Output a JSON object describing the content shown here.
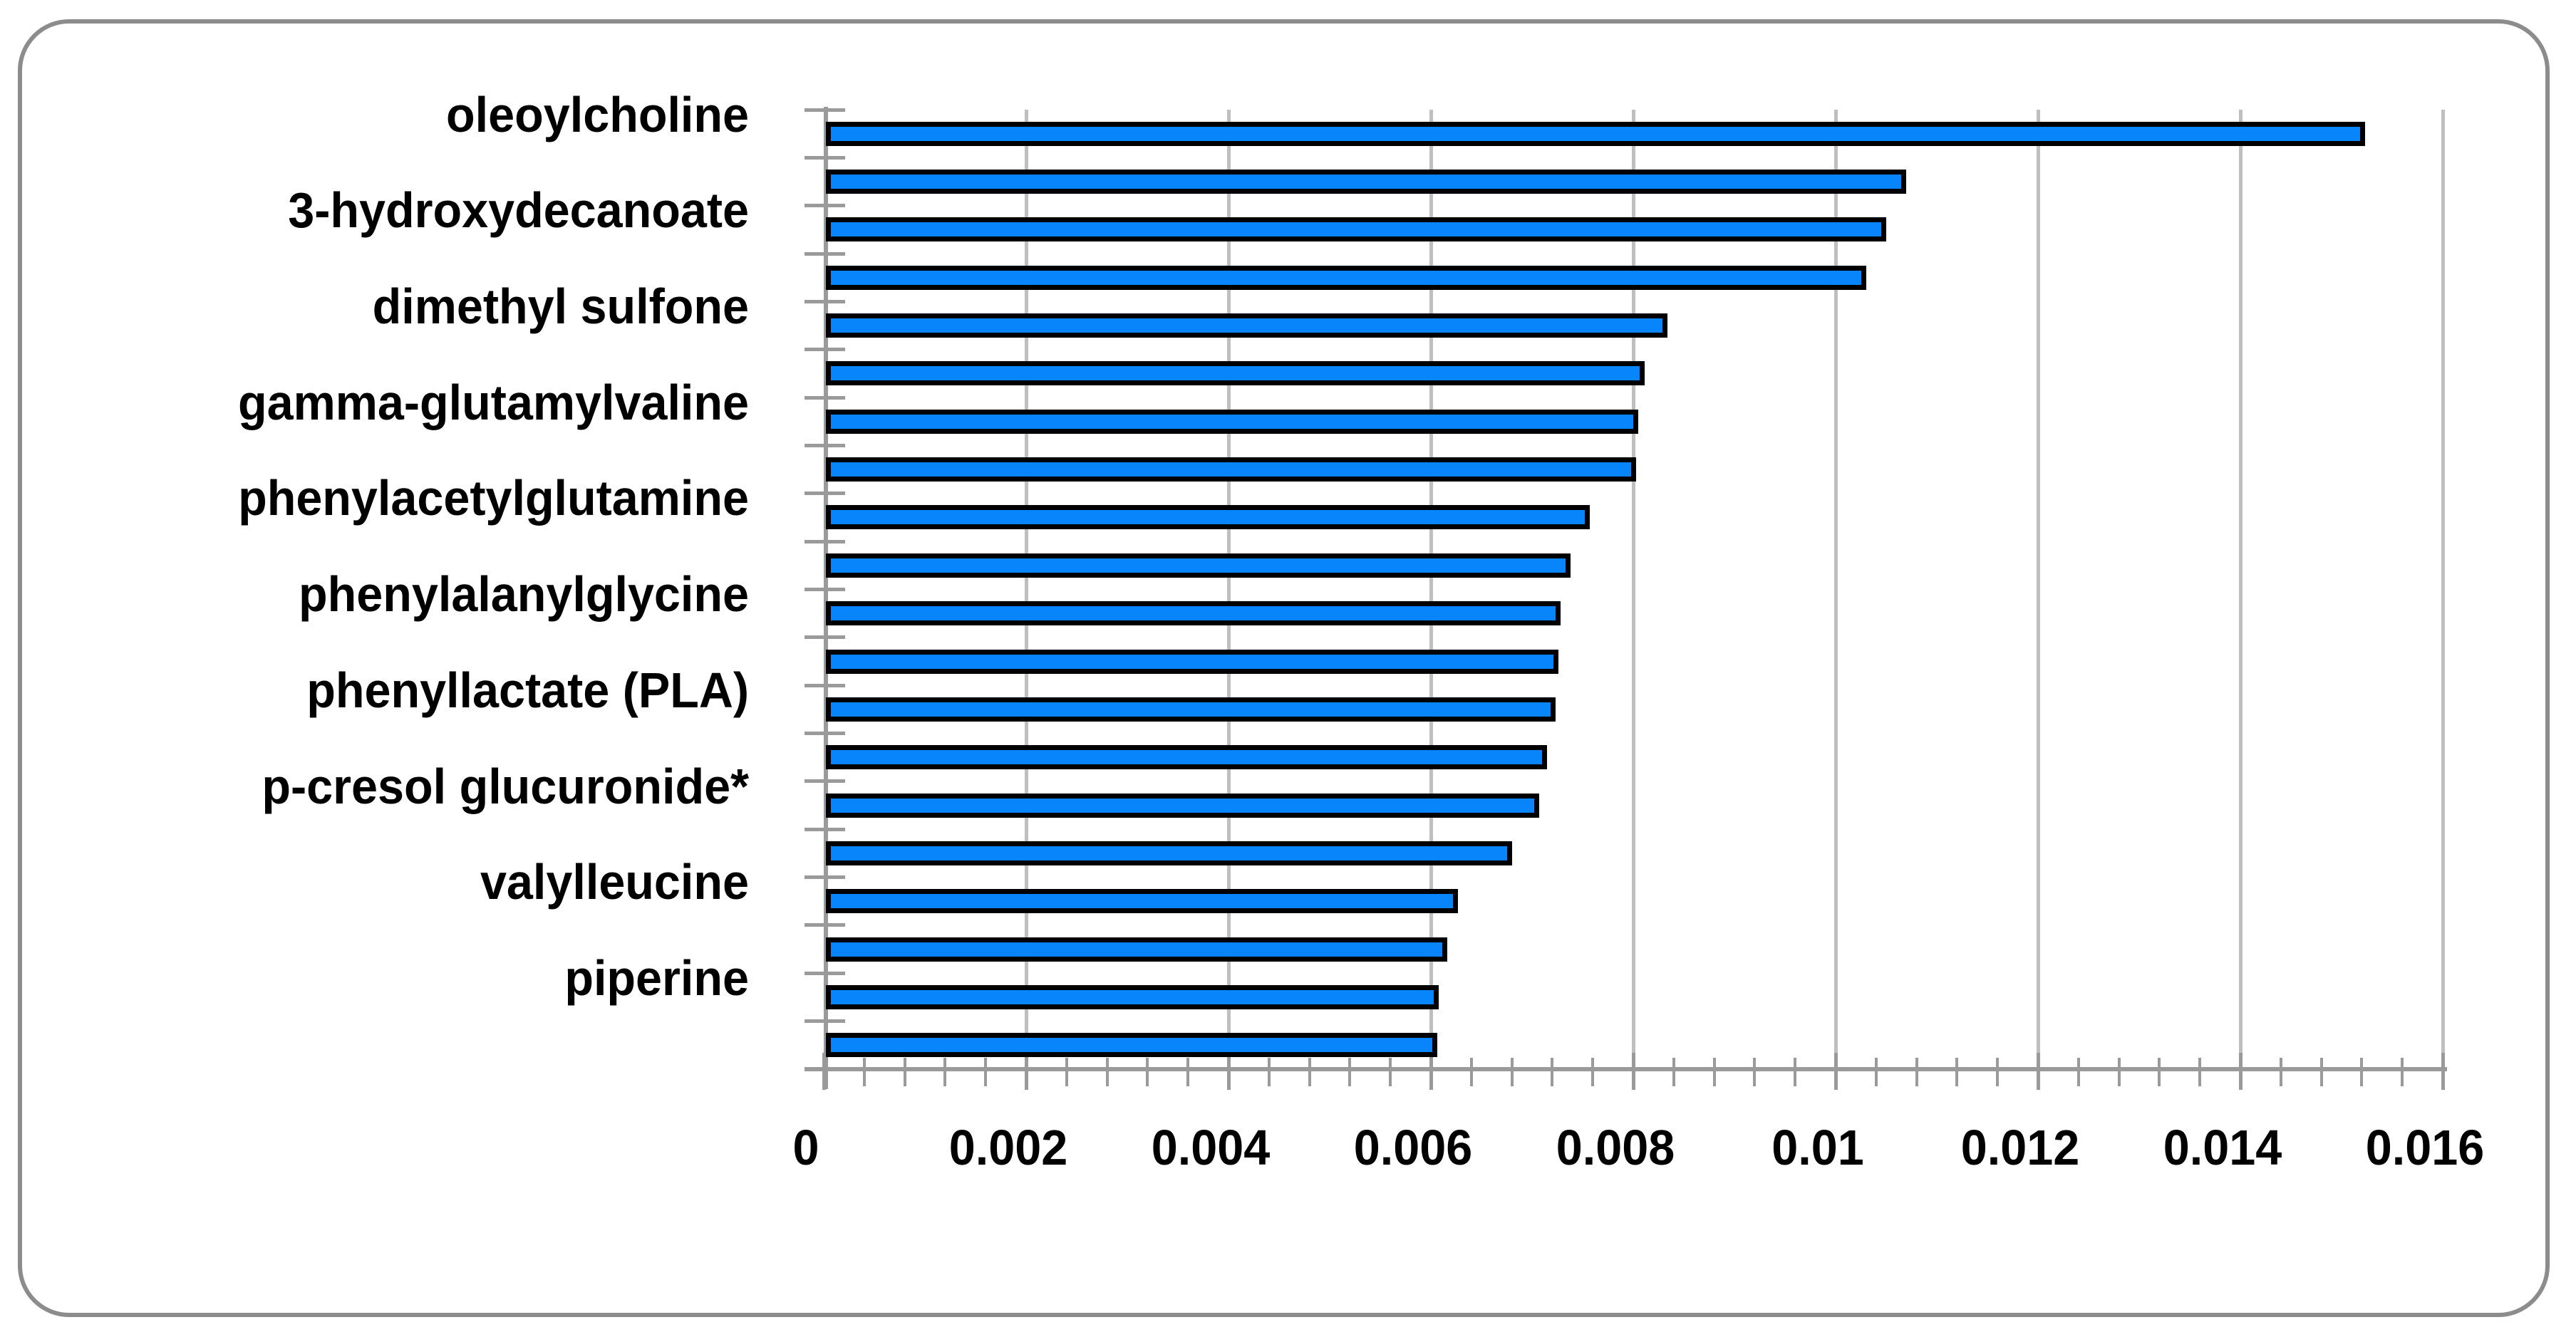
{
  "chart_data": {
    "type": "bar",
    "orientation": "horizontal",
    "title": "",
    "xlabel": "",
    "ylabel": "",
    "xlim": [
      0,
      0.016
    ],
    "x_tick_step": 0.002,
    "x_minor_tick_step": 0.0004,
    "x_tick_labels": [
      "0",
      "0.002",
      "0.004",
      "0.006",
      "0.008",
      "0.01",
      "0.012",
      "0.014",
      "0.016"
    ],
    "grid": true,
    "legend_position": "none",
    "categories": [
      "oleoylcholine",
      "",
      "3-hydroxydecanoate",
      "",
      "dimethyl sulfone",
      "",
      "gamma-glutamylvaline",
      "",
      "phenylacetylglutamine",
      "",
      "phenylalanylglycine",
      "",
      "phenyllactate (PLA)",
      "",
      "p-cresol glucuronide*",
      "",
      "valylleucine",
      "",
      "piperine",
      ""
    ],
    "values": [
      0.01523,
      0.0107,
      0.0105,
      0.0103,
      0.00834,
      0.00811,
      0.00805,
      0.00803,
      0.00757,
      0.00738,
      0.00728,
      0.00726,
      0.00723,
      0.00715,
      0.00707,
      0.0068,
      0.00627,
      0.00616,
      0.00608,
      0.00606
    ],
    "colors": {
      "bar_fill": "#0885FA",
      "bar_border": "#000000",
      "gridline": "#BFBFBF",
      "axis": "#9A9A9A",
      "frame_border": "#8C8C8C",
      "label_text": "#000000",
      "background": "#FFFFFF"
    }
  }
}
